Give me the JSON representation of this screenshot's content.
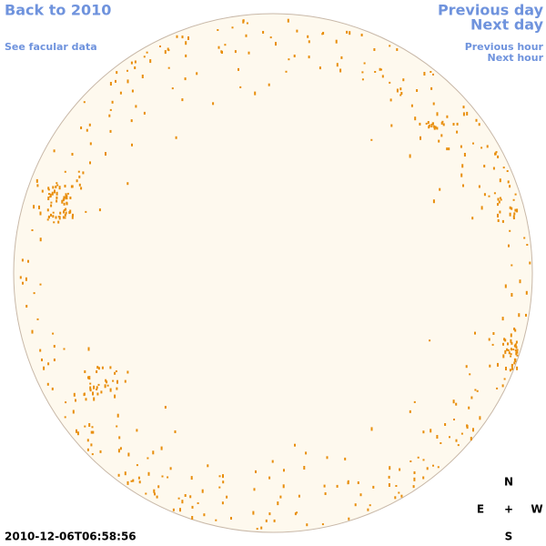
{
  "nav": {
    "back": "Back to 2010",
    "facular": "See facular data",
    "previous_day": "Previous day",
    "next_day": "Next day",
    "previous_hour": "Previous hour",
    "next_hour": "Next hour"
  },
  "timestamp": "2010-12-06T06:58:56",
  "compass": {
    "north": "N",
    "east": "E",
    "center": "+",
    "west": "W",
    "south": "S"
  }
}
